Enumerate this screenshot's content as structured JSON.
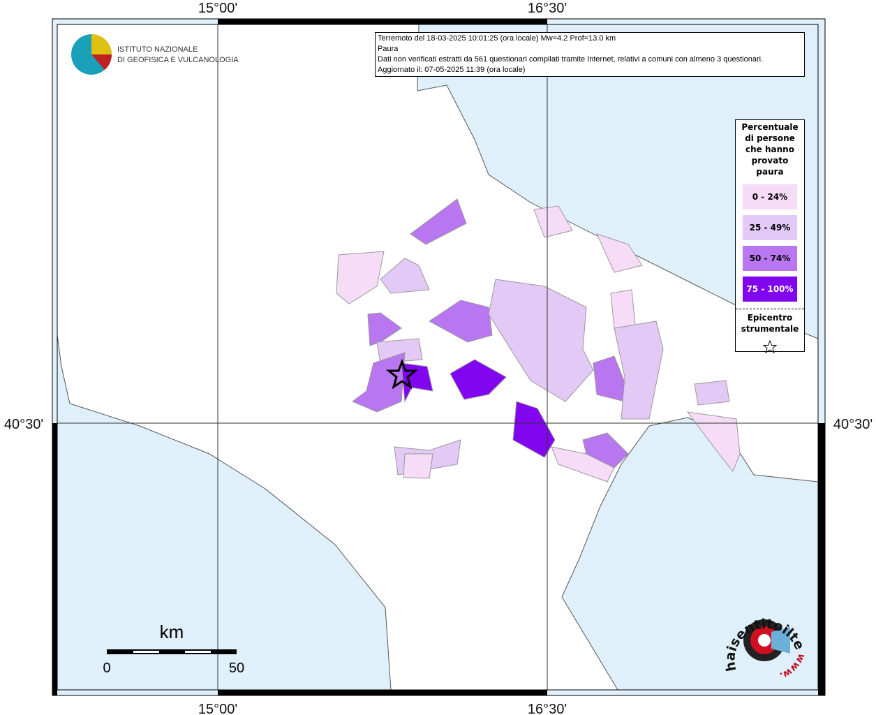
{
  "graticule": {
    "top": [
      "15°00'",
      "16°30'"
    ],
    "bottom": [
      "15°00'",
      "16°30'"
    ],
    "left": "40°30'",
    "right": "40°30'"
  },
  "logo": {
    "line1": "ISTITUTO NAZIONALE",
    "line2": "DI GEOFISICA E VULCANOLOGIA"
  },
  "info_box": {
    "lines": [
      "Terremoto del 18-03-2025 10:01:25 (ora locale) Mw=4.2 Prof=13.0 km",
      "Paura",
      "Dati non verificati estratti da 561 questionari compilati tramite Internet, relativi a comuni con almeno 3 questionari.",
      "Aggiornato il: 07-05-2025 11:39 (ora locale)"
    ]
  },
  "legend": {
    "title": "Percentuale di persone che hanno provato paura",
    "items": [
      {
        "label": "0 - 24%",
        "color": "#f7dcf7"
      },
      {
        "label": "25 - 49%",
        "color": "#e3c9f5"
      },
      {
        "label": "50 - 74%",
        "color": "#b877f0"
      },
      {
        "label": "75 - 100%",
        "color": "#8205f0"
      }
    ],
    "epicenter": "Epicentro strumentale"
  },
  "scale_bar": {
    "unit": "km",
    "start": "0",
    "end": "50"
  },
  "watermark": {
    "site": "haisentitoilterremoto.it",
    "www": "www."
  }
}
